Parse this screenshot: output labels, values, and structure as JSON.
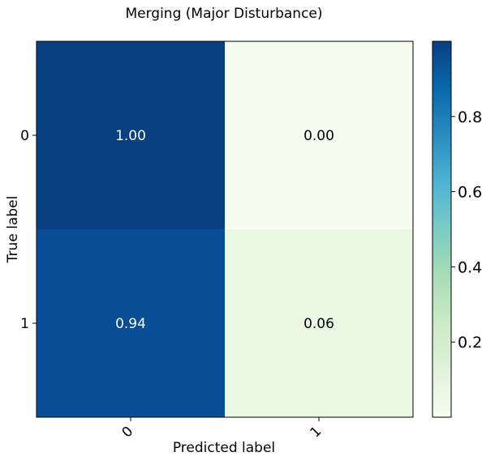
{
  "chart_data": {
    "type": "heatmap",
    "title": "Merging (Major Disturbance)",
    "xlabel": "Predicted label",
    "ylabel": "True label",
    "x_categories": [
      "0",
      "1"
    ],
    "y_categories": [
      "0",
      "1"
    ],
    "values": [
      [
        1.0,
        0.0
      ],
      [
        0.94,
        0.06
      ]
    ],
    "cell_labels": [
      [
        "1.00",
        "0.00"
      ],
      [
        "0.94",
        "0.06"
      ]
    ],
    "colormap": "GnBu",
    "colorbar": {
      "range": [
        0.0,
        1.0
      ],
      "ticks": [
        0.2,
        0.4,
        0.6,
        0.8
      ],
      "tick_labels": [
        "0.2",
        "0.4",
        "0.6",
        "0.8"
      ]
    },
    "x_tick_rotation": "45 degrees",
    "grid": false,
    "colors": {
      "cell_0_0": "#084081",
      "cell_0_1": "#f7fcf0",
      "cell_1_0": "#084e97",
      "cell_1_1": "#eaf7e3",
      "text_on_dark": "#ffffff",
      "text_on_light": "#000000"
    }
  }
}
